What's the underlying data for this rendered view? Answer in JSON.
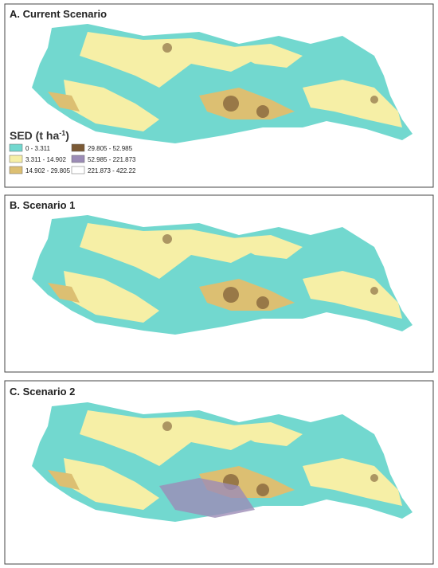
{
  "panels": [
    {
      "title": "A. Current Scenario"
    },
    {
      "title": "B. Scenario 1"
    },
    {
      "title": "C. Scenario 2"
    }
  ],
  "legend": {
    "title": "SED (t ha",
    "title_sup": "-1",
    "title_end": ")",
    "entries": [
      {
        "label": "0 - 3.311",
        "color": "#72d8cf"
      },
      {
        "label": "3.311 - 14.902",
        "color": "#f6efa6"
      },
      {
        "label": "14.902 - 29.805",
        "color": "#dcbf72"
      },
      {
        "label": "29.805 - 52.985",
        "color": "#7b5a35"
      },
      {
        "label": "52.985 - 221.873",
        "color": "#9c8cb6"
      },
      {
        "label": "221.873 - 422.22",
        "color": "#ffffff"
      }
    ]
  }
}
